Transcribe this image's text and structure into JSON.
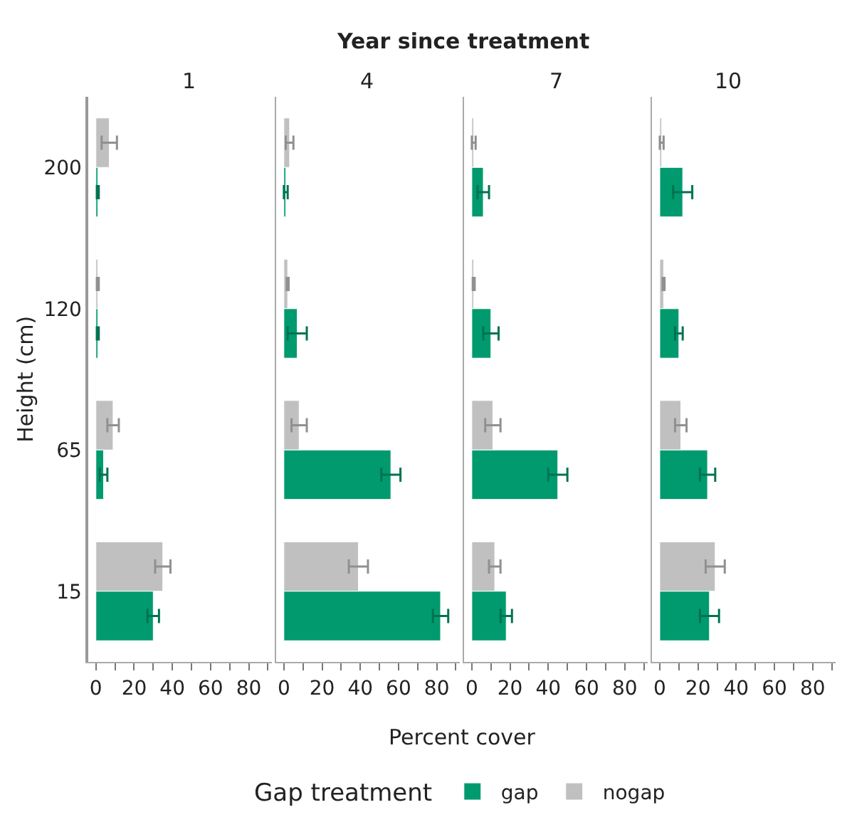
{
  "chart_data": [
    {
      "type": "bar",
      "orientation": "horizontal",
      "title": "1",
      "annotations": [
        "Year since treatment"
      ],
      "ylabel": "Height (cm)",
      "xlabel": "Percent cover",
      "legend_title": "Gap treatment",
      "legend": "bottom",
      "tick_labels": "xy",
      "categories": [
        "200",
        "120",
        "65",
        "15"
      ],
      "xlim": [
        -4,
        92
      ],
      "xticks": [
        0,
        {
          "value": 10,
          "label": null
        },
        20,
        {
          "value": 30,
          "label": null
        },
        40,
        {
          "value": 50,
          "label": null
        },
        60,
        {
          "value": 70,
          "label": null
        },
        80,
        {
          "value": 90,
          "label": null
        }
      ],
      "series": [
        {
          "name": "gap",
          "color": "#009a6e",
          "values": [
            1,
            1,
            4,
            30
          ],
          "errors": [
            0.5,
            0.5,
            2,
            3
          ]
        },
        {
          "name": "nogap",
          "color": "#c0c0c0",
          "values": [
            7,
            1,
            9,
            35
          ],
          "errors": [
            4,
            0.5,
            3,
            4
          ]
        }
      ]
    },
    {
      "type": "bar",
      "orientation": "horizontal",
      "title": "4",
      "tick_labels": "x",
      "categories": [
        "200",
        "120",
        "65",
        "15"
      ],
      "xlim": [
        -4,
        92
      ],
      "xticks": [
        0,
        {
          "value": 10,
          "label": null
        },
        20,
        {
          "value": 30,
          "label": null
        },
        40,
        {
          "value": 50,
          "label": null
        },
        60,
        {
          "value": 70,
          "label": null
        },
        80,
        {
          "value": 90,
          "label": null
        }
      ],
      "series": [
        {
          "name": "gap",
          "color": "#009a6e",
          "values": [
            1,
            7,
            56,
            82
          ],
          "errors": [
            1,
            5,
            5,
            4
          ]
        },
        {
          "name": "nogap",
          "color": "#c0c0c0",
          "values": [
            3,
            2,
            8,
            39
          ],
          "errors": [
            2,
            0.5,
            4,
            5
          ]
        }
      ]
    },
    {
      "type": "bar",
      "orientation": "horizontal",
      "title": "7",
      "tick_labels": "x",
      "categories": [
        "200",
        "120",
        "65",
        "15"
      ],
      "xlim": [
        -4,
        92
      ],
      "xticks": [
        0,
        {
          "value": 10,
          "label": null
        },
        20,
        {
          "value": 30,
          "label": null
        },
        40,
        {
          "value": 50,
          "label": null
        },
        60,
        {
          "value": 70,
          "label": null
        },
        80,
        {
          "value": 90,
          "label": null
        }
      ],
      "series": [
        {
          "name": "gap",
          "color": "#009a6e",
          "values": [
            6,
            10,
            45,
            18
          ],
          "errors": [
            3,
            4,
            5,
            3
          ]
        },
        {
          "name": "nogap",
          "color": "#c0c0c0",
          "values": [
            1,
            1,
            11,
            12
          ],
          "errors": [
            1,
            0.5,
            4,
            3
          ]
        }
      ]
    },
    {
      "type": "bar",
      "orientation": "horizontal",
      "title": "10",
      "tick_labels": "x",
      "categories": [
        "200",
        "120",
        "65",
        "15"
      ],
      "xlim": [
        -4,
        92
      ],
      "xticks": [
        0,
        {
          "value": 10,
          "label": null
        },
        20,
        {
          "value": 30,
          "label": null
        },
        40,
        {
          "value": 50,
          "label": null
        },
        60,
        {
          "value": 70,
          "label": null
        },
        80,
        {
          "value": 90,
          "label": null
        }
      ],
      "series": [
        {
          "name": "gap",
          "color": "#009a6e",
          "values": [
            12,
            10,
            25,
            26
          ],
          "errors": [
            5,
            2,
            4,
            5
          ]
        },
        {
          "name": "nogap",
          "color": "#c0c0c0",
          "values": [
            1,
            2,
            11,
            29
          ],
          "errors": [
            1,
            0.5,
            3,
            5
          ]
        }
      ]
    }
  ]
}
